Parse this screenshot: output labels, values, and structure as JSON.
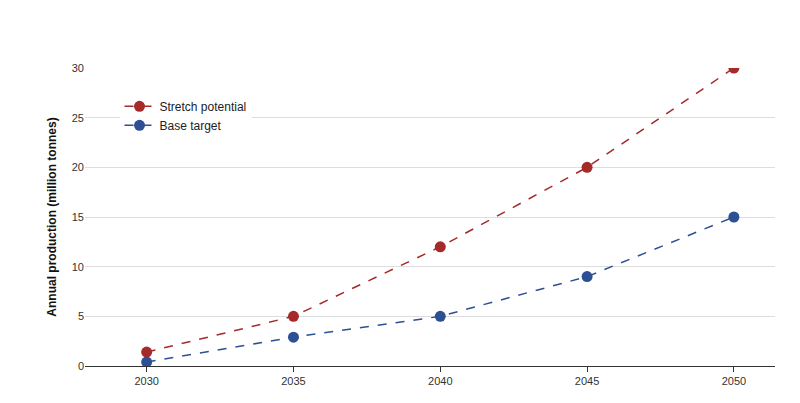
{
  "chart_data": {
    "type": "line",
    "y_label": "Annual production (million tonnes)",
    "x": [
      2030,
      2035,
      2040,
      2045,
      2050
    ],
    "series": [
      {
        "name": "Stretch potential",
        "color": "#a52a2a",
        "values": [
          1.4,
          5,
          12,
          20,
          30
        ]
      },
      {
        "name": "Base target",
        "color": "#2d4f94",
        "values": [
          0.4,
          2.9,
          5,
          9,
          15
        ]
      }
    ],
    "xlim": [
      2027.9,
      2051.4
    ],
    "xticks": [
      2030,
      2035,
      2040,
      2045,
      2050
    ],
    "ylim": [
      0,
      30
    ],
    "yticks": [
      0,
      5,
      10,
      15,
      20,
      25,
      30
    ],
    "grid": true,
    "legend": "upper left",
    "marker": "circle",
    "line_style": "dash"
  }
}
